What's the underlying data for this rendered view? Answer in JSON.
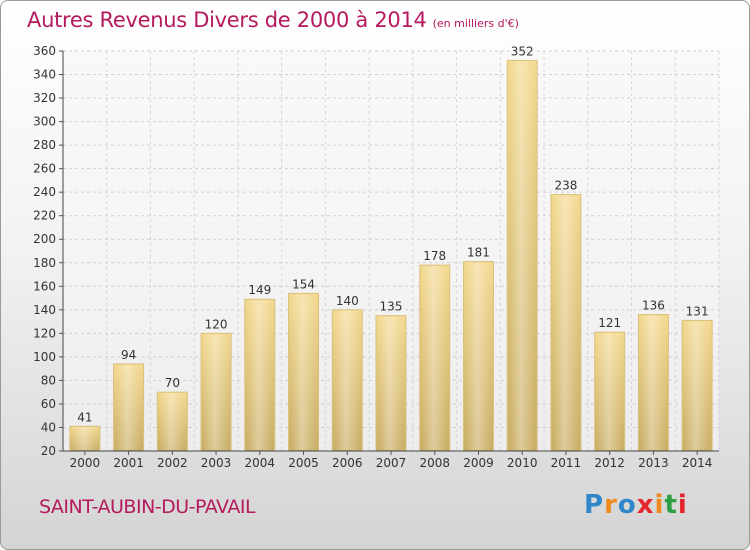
{
  "title": "Autres Revenus Divers de 2000 à 2014",
  "subtitle": "(en milliers d'€)",
  "commune": "SAINT-AUBIN-DU-PAVAIL",
  "logo": {
    "letters": [
      "P",
      "r",
      "o",
      "x",
      "i",
      "t",
      "i"
    ],
    "colors": [
      "#2f86c8",
      "#f08a1c",
      "#2f86c8",
      "#e3262c",
      "#f08a1c",
      "#2e9e43",
      "#e3262c"
    ]
  },
  "chart_data": {
    "type": "bar",
    "title": "Autres Revenus Divers de 2000 à 2014",
    "subtitle": "(en milliers d'€)",
    "categories": [
      "2000",
      "2001",
      "2002",
      "2003",
      "2004",
      "2005",
      "2006",
      "2007",
      "2008",
      "2009",
      "2010",
      "2011",
      "2012",
      "2013",
      "2014"
    ],
    "values": [
      41,
      94,
      70,
      120,
      149,
      154,
      140,
      135,
      178,
      181,
      352,
      238,
      121,
      136,
      131
    ],
    "value_labels": [
      "41",
      "94",
      "70",
      "120",
      "149",
      "154",
      "140",
      "135",
      "178",
      "181",
      "352",
      "238",
      "121",
      "136",
      "131"
    ],
    "ylim": [
      20,
      360
    ],
    "yticks": [
      20,
      40,
      60,
      80,
      100,
      120,
      140,
      160,
      180,
      200,
      220,
      240,
      260,
      280,
      300,
      320,
      340,
      360
    ],
    "grid": true,
    "bar_color": "#e2c67e"
  }
}
